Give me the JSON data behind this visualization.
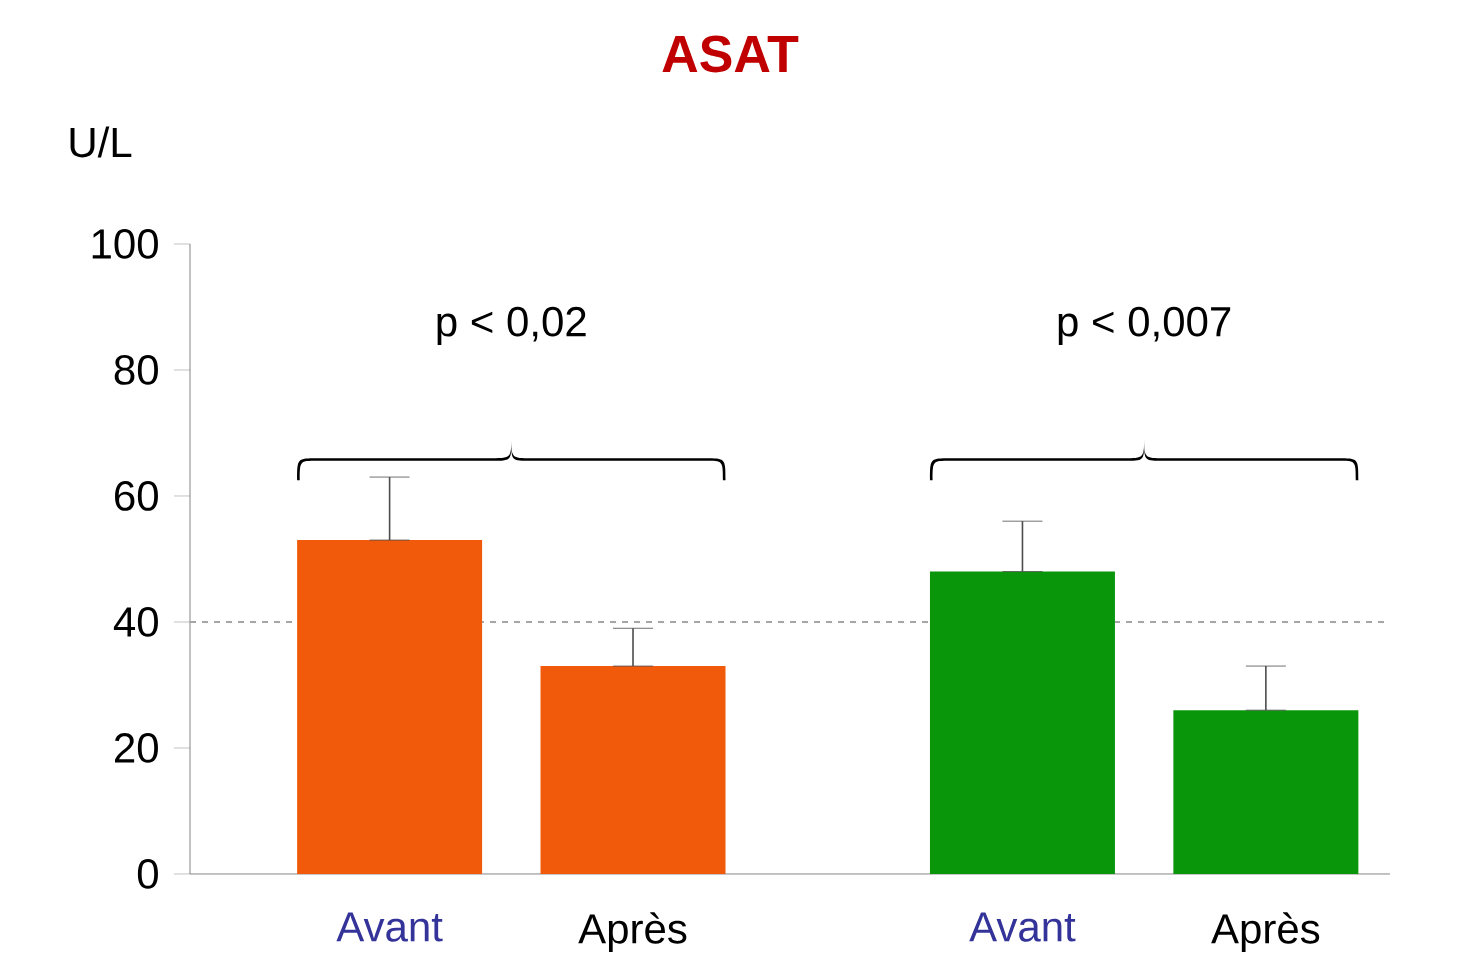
{
  "chart_data": {
    "type": "bar",
    "title": "ASAT",
    "ylabel": "U/L",
    "categories": [
      "Avant",
      "Après",
      "Avant",
      "Après"
    ],
    "values": [
      53,
      33,
      48,
      26
    ],
    "colors": [
      "#f05a0a",
      "#f05a0a",
      "#0a960a",
      "#0a960a"
    ],
    "errors": [
      [
        53,
        63
      ],
      [
        33,
        39
      ],
      [
        48,
        56
      ],
      [
        26,
        33
      ]
    ],
    "ylim": [
      0,
      100
    ],
    "yticks": [
      0,
      20,
      40,
      60,
      80,
      100
    ],
    "ref_lines": [
      {
        "axis": "y",
        "value": 40,
        "color": "#a6a6a6",
        "line_style": "dashed"
      }
    ],
    "annotations": [
      "p < 0,02",
      "p < 0,007"
    ]
  }
}
